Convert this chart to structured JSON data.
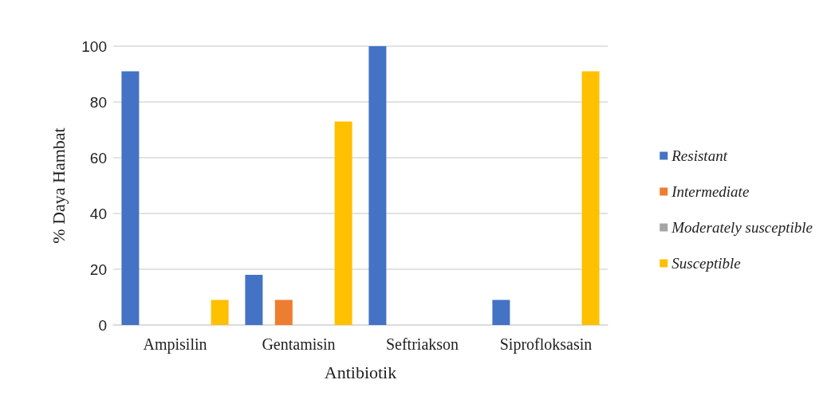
{
  "chart_data": {
    "type": "bar",
    "xlabel": "Antibiotik",
    "ylabel": "% Daya Hambat",
    "categories": [
      "Ampisilin",
      "Gentamisin",
      "Seftriakson",
      "Siprofloksasin"
    ],
    "series": [
      {
        "name": "Resistant",
        "color": "#4472c4",
        "values": [
          91,
          18,
          100,
          9
        ]
      },
      {
        "name": "Intermediate",
        "color": "#ed7d31",
        "values": [
          0,
          9,
          0,
          0
        ]
      },
      {
        "name": "Moderately susceptible",
        "color": "#a5a5a5",
        "values": [
          0,
          0,
          0,
          0
        ]
      },
      {
        "name": "Susceptible",
        "color": "#ffc000",
        "values": [
          9,
          73,
          0,
          91
        ]
      }
    ],
    "ylim": [
      0,
      100
    ],
    "yticks": [
      0,
      20,
      40,
      60,
      80,
      100
    ],
    "grid": "y",
    "legend": "right"
  }
}
